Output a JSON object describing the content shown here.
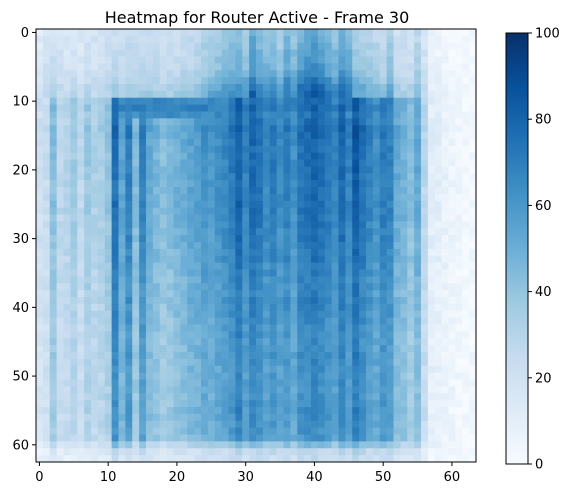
{
  "chart_data": {
    "type": "heatmap",
    "title": "Heatmap for Router Active - Frame 30",
    "xlabel": "",
    "ylabel": "",
    "grid": false,
    "colormap": "Blues",
    "colorbar": {
      "range": [
        0,
        100
      ],
      "ticks": [
        0,
        20,
        40,
        60,
        80,
        100
      ]
    },
    "x_ticks": [
      0,
      10,
      20,
      30,
      40,
      50,
      60
    ],
    "y_ticks": [
      0,
      10,
      20,
      30,
      40,
      50,
      60
    ],
    "shape": [
      63,
      64
    ],
    "x_range": [
      -0.5,
      63.5
    ],
    "y_range": [
      -0.5,
      62.5
    ],
    "column_profile": [
      22,
      25,
      45,
      30,
      32,
      38,
      28,
      40,
      34,
      36,
      42,
      80,
      58,
      74,
      48,
      72,
      55,
      50,
      45,
      47,
      52,
      54,
      58,
      60,
      65,
      62,
      66,
      70,
      75,
      85,
      72,
      82,
      78,
      70,
      75,
      68,
      74,
      66,
      78,
      80,
      84,
      80,
      76,
      70,
      82,
      72,
      88,
      78,
      72,
      66,
      75,
      72,
      55,
      52,
      45,
      55,
      30,
      12,
      10,
      8,
      6,
      4,
      3,
      3
    ],
    "column_profile_top_rows_0_to_9": [
      22,
      30,
      35,
      30,
      28,
      30,
      26,
      32,
      30,
      32,
      35,
      40,
      38,
      42,
      40,
      42,
      40,
      38,
      36,
      38,
      40,
      42,
      44,
      46,
      55,
      60,
      62,
      66,
      70,
      72,
      65,
      90,
      75,
      70,
      72,
      60,
      80,
      70,
      85,
      92,
      96,
      90,
      80,
      72,
      88,
      80,
      60,
      58,
      55,
      50,
      45,
      60,
      40,
      38,
      35,
      50,
      30,
      12,
      10,
      8,
      6,
      4,
      3,
      3
    ],
    "row_levels": [
      55,
      58,
      60,
      62,
      64,
      66,
      70,
      78,
      85,
      90,
      95,
      98,
      92,
      95,
      100,
      98,
      96,
      95,
      94,
      95,
      96,
      95,
      94,
      93,
      94,
      95,
      94,
      93,
      92,
      91,
      92,
      90,
      89,
      90,
      88,
      87,
      86,
      85,
      84,
      86,
      85,
      84,
      83,
      82,
      81,
      80,
      80,
      82,
      81,
      80,
      79,
      80,
      78,
      79,
      80,
      81,
      80,
      79,
      78,
      76,
      55,
      35,
      30
    ]
  }
}
